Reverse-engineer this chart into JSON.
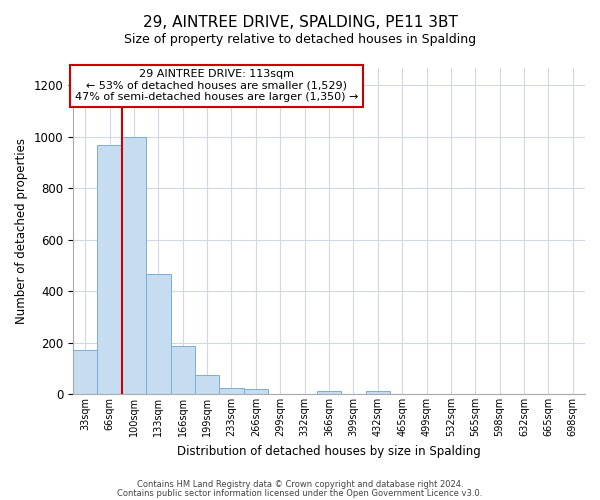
{
  "title": "29, AINTREE DRIVE, SPALDING, PE11 3BT",
  "subtitle": "Size of property relative to detached houses in Spalding",
  "xlabel": "Distribution of detached houses by size in Spalding",
  "ylabel": "Number of detached properties",
  "bin_labels": [
    "33sqm",
    "66sqm",
    "100sqm",
    "133sqm",
    "166sqm",
    "199sqm",
    "233sqm",
    "266sqm",
    "299sqm",
    "332sqm",
    "366sqm",
    "399sqm",
    "432sqm",
    "465sqm",
    "499sqm",
    "532sqm",
    "565sqm",
    "598sqm",
    "632sqm",
    "665sqm",
    "698sqm"
  ],
  "bar_heights": [
    170,
    970,
    1000,
    465,
    185,
    75,
    25,
    20,
    0,
    0,
    10,
    0,
    10,
    0,
    0,
    0,
    0,
    0,
    0,
    0,
    0
  ],
  "bar_color": "#c6dcf0",
  "bar_edge_color": "#7bafd4",
  "property_line_color": "#cc0000",
  "annotation_title": "29 AINTREE DRIVE: 113sqm",
  "annotation_line1": "← 53% of detached houses are smaller (1,529)",
  "annotation_line2": "47% of semi-detached houses are larger (1,350) →",
  "annotation_box_facecolor": "#ffffff",
  "annotation_box_edgecolor": "#cc0000",
  "ylim": [
    0,
    1270
  ],
  "yticks": [
    0,
    200,
    400,
    600,
    800,
    1000,
    1200
  ],
  "footnote1": "Contains HM Land Registry data © Crown copyright and database right 2024.",
  "footnote2": "Contains public sector information licensed under the Open Government Licence v3.0.",
  "background_color": "#ffffff",
  "grid_color": "#d0d8e8"
}
